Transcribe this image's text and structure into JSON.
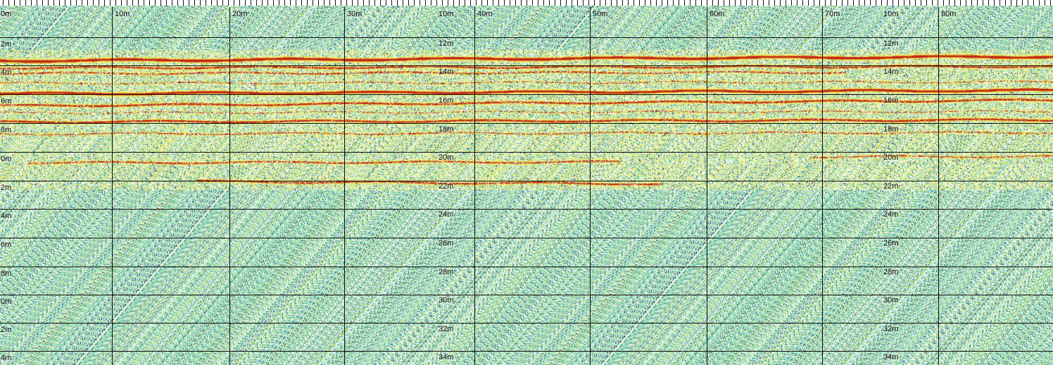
{
  "radargram": {
    "distance_labels": [
      "0m",
      "10m",
      "20m",
      "30m",
      "40m",
      "50m",
      "60m",
      "70m",
      "80m"
    ],
    "depth_labels_left": [
      "0m",
      "2m",
      "4m",
      "6m",
      "8m",
      "0m",
      "2m",
      "4m",
      "6m",
      "8m",
      "0m",
      "2m",
      "4m"
    ],
    "depth_labels_mid": [
      "10m",
      "12m",
      "14m",
      "16m",
      "18m",
      "20m",
      "22m",
      "24m",
      "26m",
      "28m",
      "30m",
      "32m",
      "34m"
    ],
    "depth_labels_right": [
      "10m",
      "12m",
      "14m",
      "16m",
      "18m",
      "20m",
      "22m",
      "24m",
      "26m",
      "28m",
      "30m",
      "32m",
      "34m"
    ],
    "colors": {
      "background_cyan": "#7fd3c8",
      "background_green": "#9bd88a",
      "speckle_white": "#ffffff",
      "speckle_dark": "#1a3a7a",
      "reflector_red": "#c0281c",
      "reflector_orange": "#e08a1c",
      "reflector_yellow": "#f2ea6a",
      "grid": "#111111"
    }
  }
}
